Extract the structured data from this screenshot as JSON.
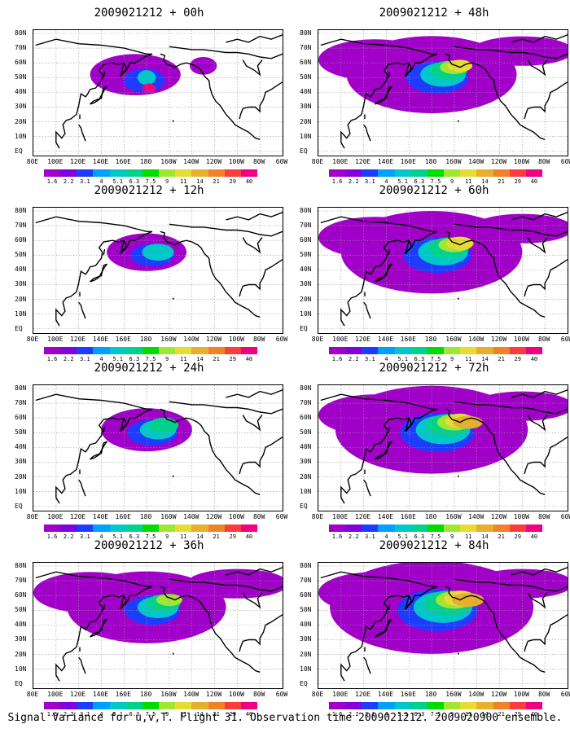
{
  "panels": [
    {
      "title": "2009021212 + 00h",
      "level": 0
    },
    {
      "title": "2009021212 + 48h",
      "level": 4
    },
    {
      "title": "2009021212 + 12h",
      "level": 1
    },
    {
      "title": "2009021212 + 60h",
      "level": 5
    },
    {
      "title": "2009021212 + 24h",
      "level": 2
    },
    {
      "title": "2009021212 + 72h",
      "level": 6
    },
    {
      "title": "2009021212 + 36h",
      "level": 3
    },
    {
      "title": "2009021212 + 84h",
      "level": 7
    }
  ],
  "lat_labels": [
    "80N",
    "70N",
    "60N",
    "50N",
    "40N",
    "30N",
    "20N",
    "10N",
    "EQ"
  ],
  "lon_labels": [
    "80E",
    "100E",
    "120E",
    "140E",
    "160E",
    "180",
    "160W",
    "140W",
    "120W",
    "100W",
    "80W",
    "60W"
  ],
  "colorbar": {
    "colors": [
      "#a000c8",
      "#8200dc",
      "#1e3cff",
      "#00a0ff",
      "#00c8c8",
      "#00d28c",
      "#00dc00",
      "#a0e632",
      "#e6dc32",
      "#e6af2d",
      "#f08228",
      "#fa3c3c",
      "#f00082"
    ],
    "labels": [
      "1.6",
      "2.2",
      "3.1",
      "4",
      "5.1",
      "6.3",
      "7.5",
      "9",
      "11",
      "14",
      "21",
      "29",
      "40"
    ]
  },
  "caption": "Signal Variance for u,v,T. Flight 31. Observation time 2009021212. 2009020900 ensemble."
}
